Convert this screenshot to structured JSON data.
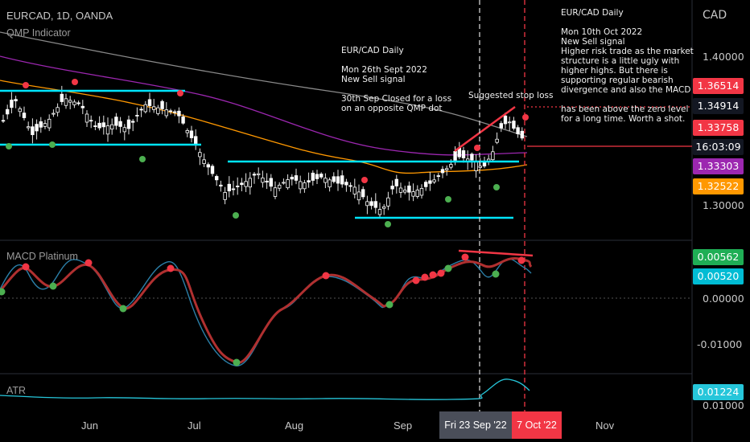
{
  "header": {
    "symbol": "EURCAD, 1D, OANDA",
    "indicator": "QMP Indicator"
  },
  "panes": {
    "macd_label": "MACD Platinum",
    "atr_label": "ATR"
  },
  "currency": "CAD",
  "price_axis": {
    "ticks": [
      "1.40000",
      "1.30000"
    ],
    "tags": [
      {
        "text": "1.36514",
        "color": "#f23645"
      },
      {
        "text": "1.34914",
        "color": "#131722"
      },
      {
        "text": "1.33758",
        "color": "#f23645"
      },
      {
        "text": "16:03:09",
        "color": "#131722"
      },
      {
        "text": "1.33303",
        "color": "#9c27b0"
      },
      {
        "text": "1.32522",
        "color": "#ff9800"
      }
    ]
  },
  "macd_axis": {
    "ticks": [
      "0.00000",
      "-0.01000"
    ],
    "tags": [
      {
        "text": "0.00562",
        "color": "#1fae55"
      },
      {
        "text": "0.00520",
        "color": "#00bcd4"
      }
    ]
  },
  "atr_axis": {
    "ticks": [
      "0.01000"
    ],
    "tags": [
      {
        "text": "0.01224",
        "color": "#26c6da"
      }
    ]
  },
  "time_axis": {
    "labels": [
      "Jun",
      "Jul",
      "Aug",
      "Sep",
      "Nov"
    ],
    "highlight_1": "Fri 23 Sep '22",
    "highlight_2": "7 Oct '22"
  },
  "annotations": {
    "note_sept": "EUR/CAD Daily\n\nMon 26th Sept 2022\nNew Sell signal\n\n30th Sep Closed for a loss\non an opposite QMP dot",
    "stop_loss": "Suggested stop loss",
    "note_oct": "EUR/CAD Daily\n\nMon 10th Oct 2022\nNew Sell signal\nHigher risk trade as the market\nstructure is a little ugly with\nhigher highs. But there is\nsupporting regular bearish\ndivergence and also the MACD\n\nhas been above the zero level\nfor a long time. Worth a shot."
  },
  "colors": {
    "up": "#ffffff",
    "down": "#ffffff",
    "cyan_line": "#00e5ff",
    "ma_gray": "#9e9e9e",
    "ma_purple": "#9c27b0",
    "ma_orange": "#ff9800",
    "signal_red": "#f23645",
    "signal_green": "#4caf50"
  }
}
